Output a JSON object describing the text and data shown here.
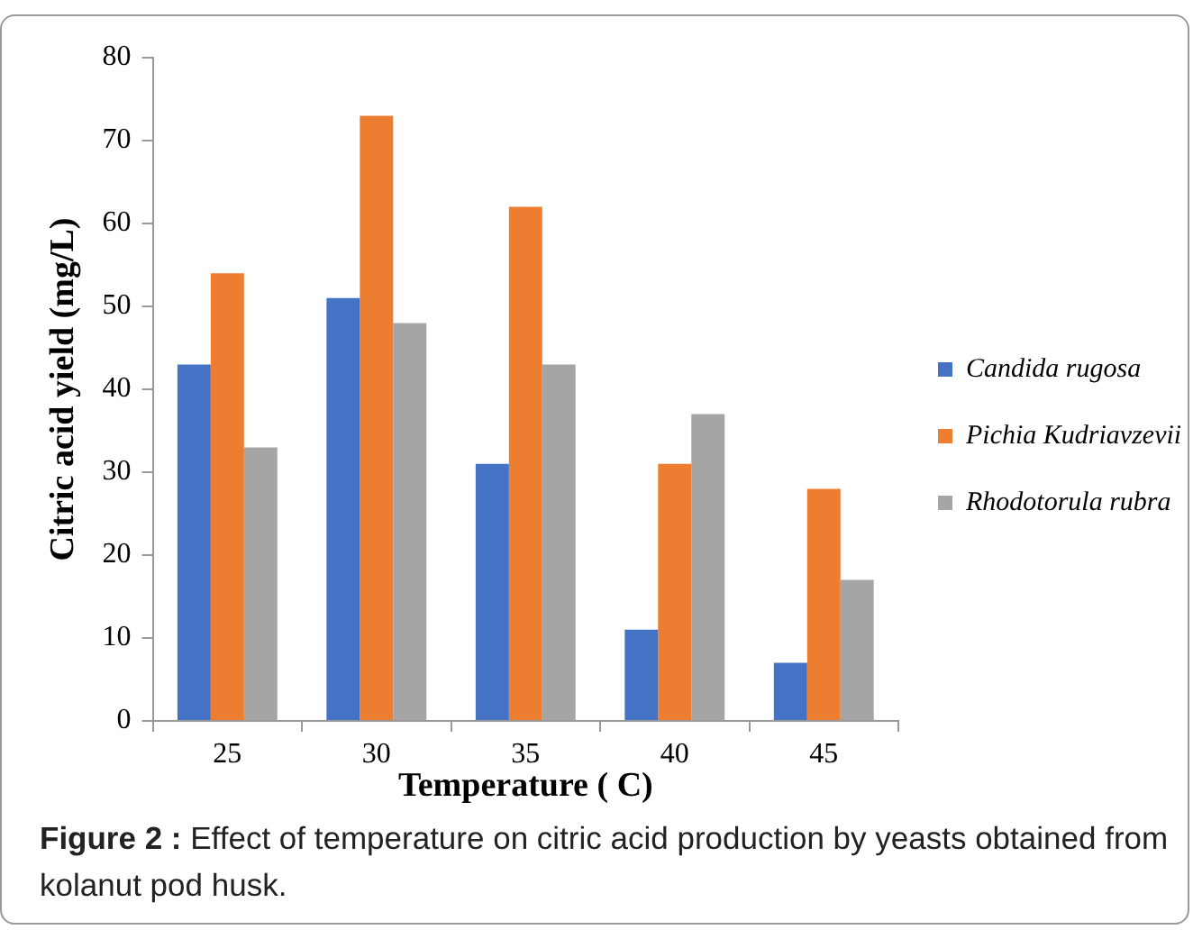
{
  "chart_data": {
    "type": "bar",
    "xlabel": "Temperature ( C)",
    "ylabel": "Citric acid yield (mg/L)",
    "categories": [
      "25",
      "30",
      "35",
      "40",
      "45"
    ],
    "series": [
      {
        "name": "Candida rugosa",
        "color": "#4472c4",
        "values": [
          43,
          51,
          31,
          11,
          7
        ]
      },
      {
        "name": "Pichia Kudriavzevii",
        "color": "#ed7d31",
        "values": [
          54,
          73,
          62,
          31,
          28
        ]
      },
      {
        "name": "Rhodotorula rubra",
        "color": "#a5a5a5",
        "values": [
          33,
          48,
          43,
          37,
          17
        ]
      }
    ],
    "ylim": [
      0,
      80
    ],
    "yticks": [
      0,
      10,
      20,
      30,
      40,
      50,
      60,
      70,
      80
    ],
    "grid": false,
    "legend": "right",
    "annotations": [
      "Figure 2 :",
      "Effect of temperature on citric acid production by yeasts obtained from kolanut pod husk."
    ]
  }
}
